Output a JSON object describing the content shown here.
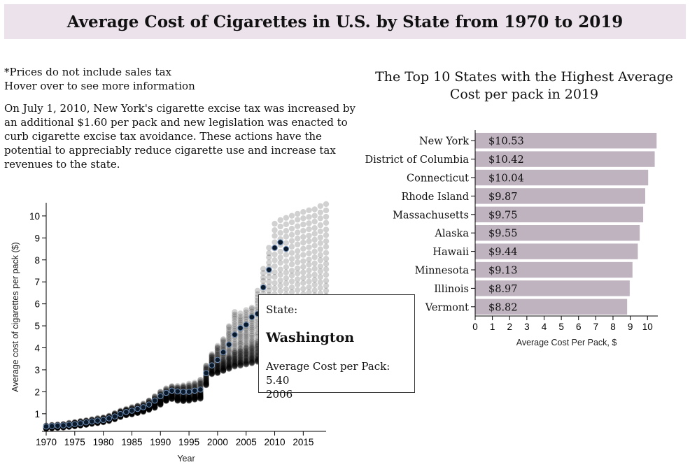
{
  "page": {
    "title": "Average Cost of Cigarettes in U.S. by State from 1970 to 2019"
  },
  "notes": {
    "line1": "*Prices do not include sales tax",
    "line2": "Hover over to see more information",
    "paragraph": "On July 1, 2010, New York's cigarette excise tax was increased by an additional $1.60 per pack and new legislation was enacted to curb cigarette excise tax avoidance. These actions have the potential to appreciably reduce cigarette use and increase tax revenues to the state."
  },
  "tooltip": {
    "state_label": "State:",
    "state": "Washington",
    "cost_label": "Average Cost per Pack: 5.40",
    "year": "2006"
  },
  "colors": {
    "banner": "#ece2ec",
    "bar": "#bfb3c0",
    "point": "#000000",
    "highlight": "#0b1a2b"
  },
  "chart_data": [
    {
      "type": "scatter",
      "title": "",
      "xlabel": "Year",
      "ylabel": "Average cost of cigarettes per pack ($)",
      "xlim": [
        1970,
        2019
      ],
      "ylim": [
        0.2,
        10.6
      ],
      "xticks": [
        1970,
        1975,
        1980,
        1985,
        1990,
        1995,
        2000,
        2005,
        2010,
        2015
      ],
      "yticks": [
        1,
        2,
        3,
        4,
        5,
        6,
        7,
        8,
        9,
        10
      ],
      "grid": false,
      "series_count": 51,
      "annual_band": {
        "year": [
          1970,
          1971,
          1972,
          1973,
          1974,
          1975,
          1976,
          1977,
          1978,
          1979,
          1980,
          1981,
          1982,
          1983,
          1984,
          1985,
          1986,
          1987,
          1988,
          1989,
          1990,
          1991,
          1992,
          1993,
          1994,
          1995,
          1996,
          1997,
          1998,
          1999,
          2000,
          2001,
          2002,
          2003,
          2004,
          2005,
          2006,
          2007,
          2008,
          2009,
          2010,
          2011,
          2012,
          2013,
          2014,
          2015,
          2016,
          2017,
          2018,
          2019
        ],
        "min": [
          0.33,
          0.35,
          0.37,
          0.38,
          0.41,
          0.44,
          0.47,
          0.51,
          0.55,
          0.59,
          0.62,
          0.68,
          0.76,
          0.86,
          0.94,
          0.98,
          1.03,
          1.1,
          1.18,
          1.28,
          1.42,
          1.58,
          1.68,
          1.6,
          1.58,
          1.6,
          1.65,
          1.7,
          2.3,
          2.8,
          2.85,
          2.95,
          3.05,
          3.15,
          3.2,
          3.25,
          3.3,
          3.35,
          3.45,
          3.55,
          3.6,
          3.65,
          3.7,
          3.75,
          3.8,
          3.85,
          3.9,
          3.95,
          4.0,
          4.05
        ],
        "median": [
          0.39,
          0.41,
          0.43,
          0.45,
          0.48,
          0.52,
          0.56,
          0.6,
          0.64,
          0.68,
          0.72,
          0.79,
          0.88,
          0.99,
          1.07,
          1.12,
          1.18,
          1.25,
          1.36,
          1.49,
          1.66,
          1.8,
          1.92,
          1.9,
          1.86,
          1.88,
          1.93,
          2.0,
          2.7,
          3.25,
          3.35,
          3.45,
          3.65,
          3.85,
          3.95,
          4.05,
          4.15,
          4.3,
          4.55,
          4.95,
          5.15,
          5.25,
          5.35,
          5.45,
          5.55,
          5.6,
          5.7,
          5.8,
          5.9,
          6.0
        ],
        "max": [
          0.46,
          0.49,
          0.52,
          0.54,
          0.58,
          0.63,
          0.67,
          0.71,
          0.75,
          0.79,
          0.83,
          0.91,
          1.02,
          1.14,
          1.22,
          1.3,
          1.38,
          1.46,
          1.62,
          1.8,
          2.0,
          2.15,
          2.25,
          2.25,
          2.3,
          2.35,
          2.4,
          2.55,
          3.2,
          3.7,
          4.1,
          4.4,
          5.0,
          5.65,
          5.55,
          5.7,
          5.85,
          6.6,
          7.6,
          8.55,
          9.65,
          9.8,
          9.9,
          10.0,
          10.1,
          10.2,
          10.25,
          10.3,
          10.45,
          10.53
        ]
      },
      "highlighted_series": {
        "name": "Washington",
        "x": [
          1970,
          1971,
          1972,
          1973,
          1974,
          1975,
          1976,
          1977,
          1978,
          1979,
          1980,
          1981,
          1982,
          1983,
          1984,
          1985,
          1986,
          1987,
          1988,
          1989,
          1990,
          1991,
          1992,
          1993,
          1994,
          1995,
          1996,
          1997,
          1998,
          1999,
          2000,
          2001,
          2002,
          2003,
          2004,
          2005,
          2006,
          2007,
          2008,
          2009,
          2010,
          2011,
          2012
        ],
        "y": [
          0.42,
          0.44,
          0.46,
          0.47,
          0.5,
          0.53,
          0.57,
          0.61,
          0.65,
          0.69,
          0.72,
          0.79,
          0.88,
          0.99,
          1.08,
          1.14,
          1.22,
          1.3,
          1.42,
          1.6,
          1.8,
          1.95,
          2.05,
          2.02,
          2.0,
          2.0,
          2.05,
          2.1,
          2.85,
          3.2,
          3.45,
          3.8,
          4.15,
          4.6,
          4.9,
          5.05,
          5.4,
          5.55,
          6.75,
          7.55,
          8.55,
          8.8,
          8.5
        ]
      }
    },
    {
      "type": "bar",
      "orientation": "horizontal",
      "title": "The Top 10 States with the Highest Average Cost per pack in 2019",
      "xlabel": "Average Cost Per Pack, $",
      "ylabel": "",
      "xlim": [
        0,
        10.6
      ],
      "xticks": [
        0,
        1,
        2,
        3,
        4,
        5,
        6,
        7,
        8,
        9,
        10
      ],
      "categories": [
        "New York",
        "District of Columbia",
        "Connecticut",
        "Rhode Island",
        "Massachusetts",
        "Alaska",
        "Hawaii",
        "Minnesota",
        "Illinois",
        "Vermont"
      ],
      "values": [
        10.53,
        10.42,
        10.04,
        9.87,
        9.75,
        9.55,
        9.44,
        9.13,
        8.97,
        8.82
      ],
      "value_labels": [
        "$10.53",
        "$10.42",
        "$10.04",
        "$9.87",
        "$9.75",
        "$9.55",
        "$9.44",
        "$9.13",
        "$8.97",
        "$8.82"
      ]
    }
  ]
}
